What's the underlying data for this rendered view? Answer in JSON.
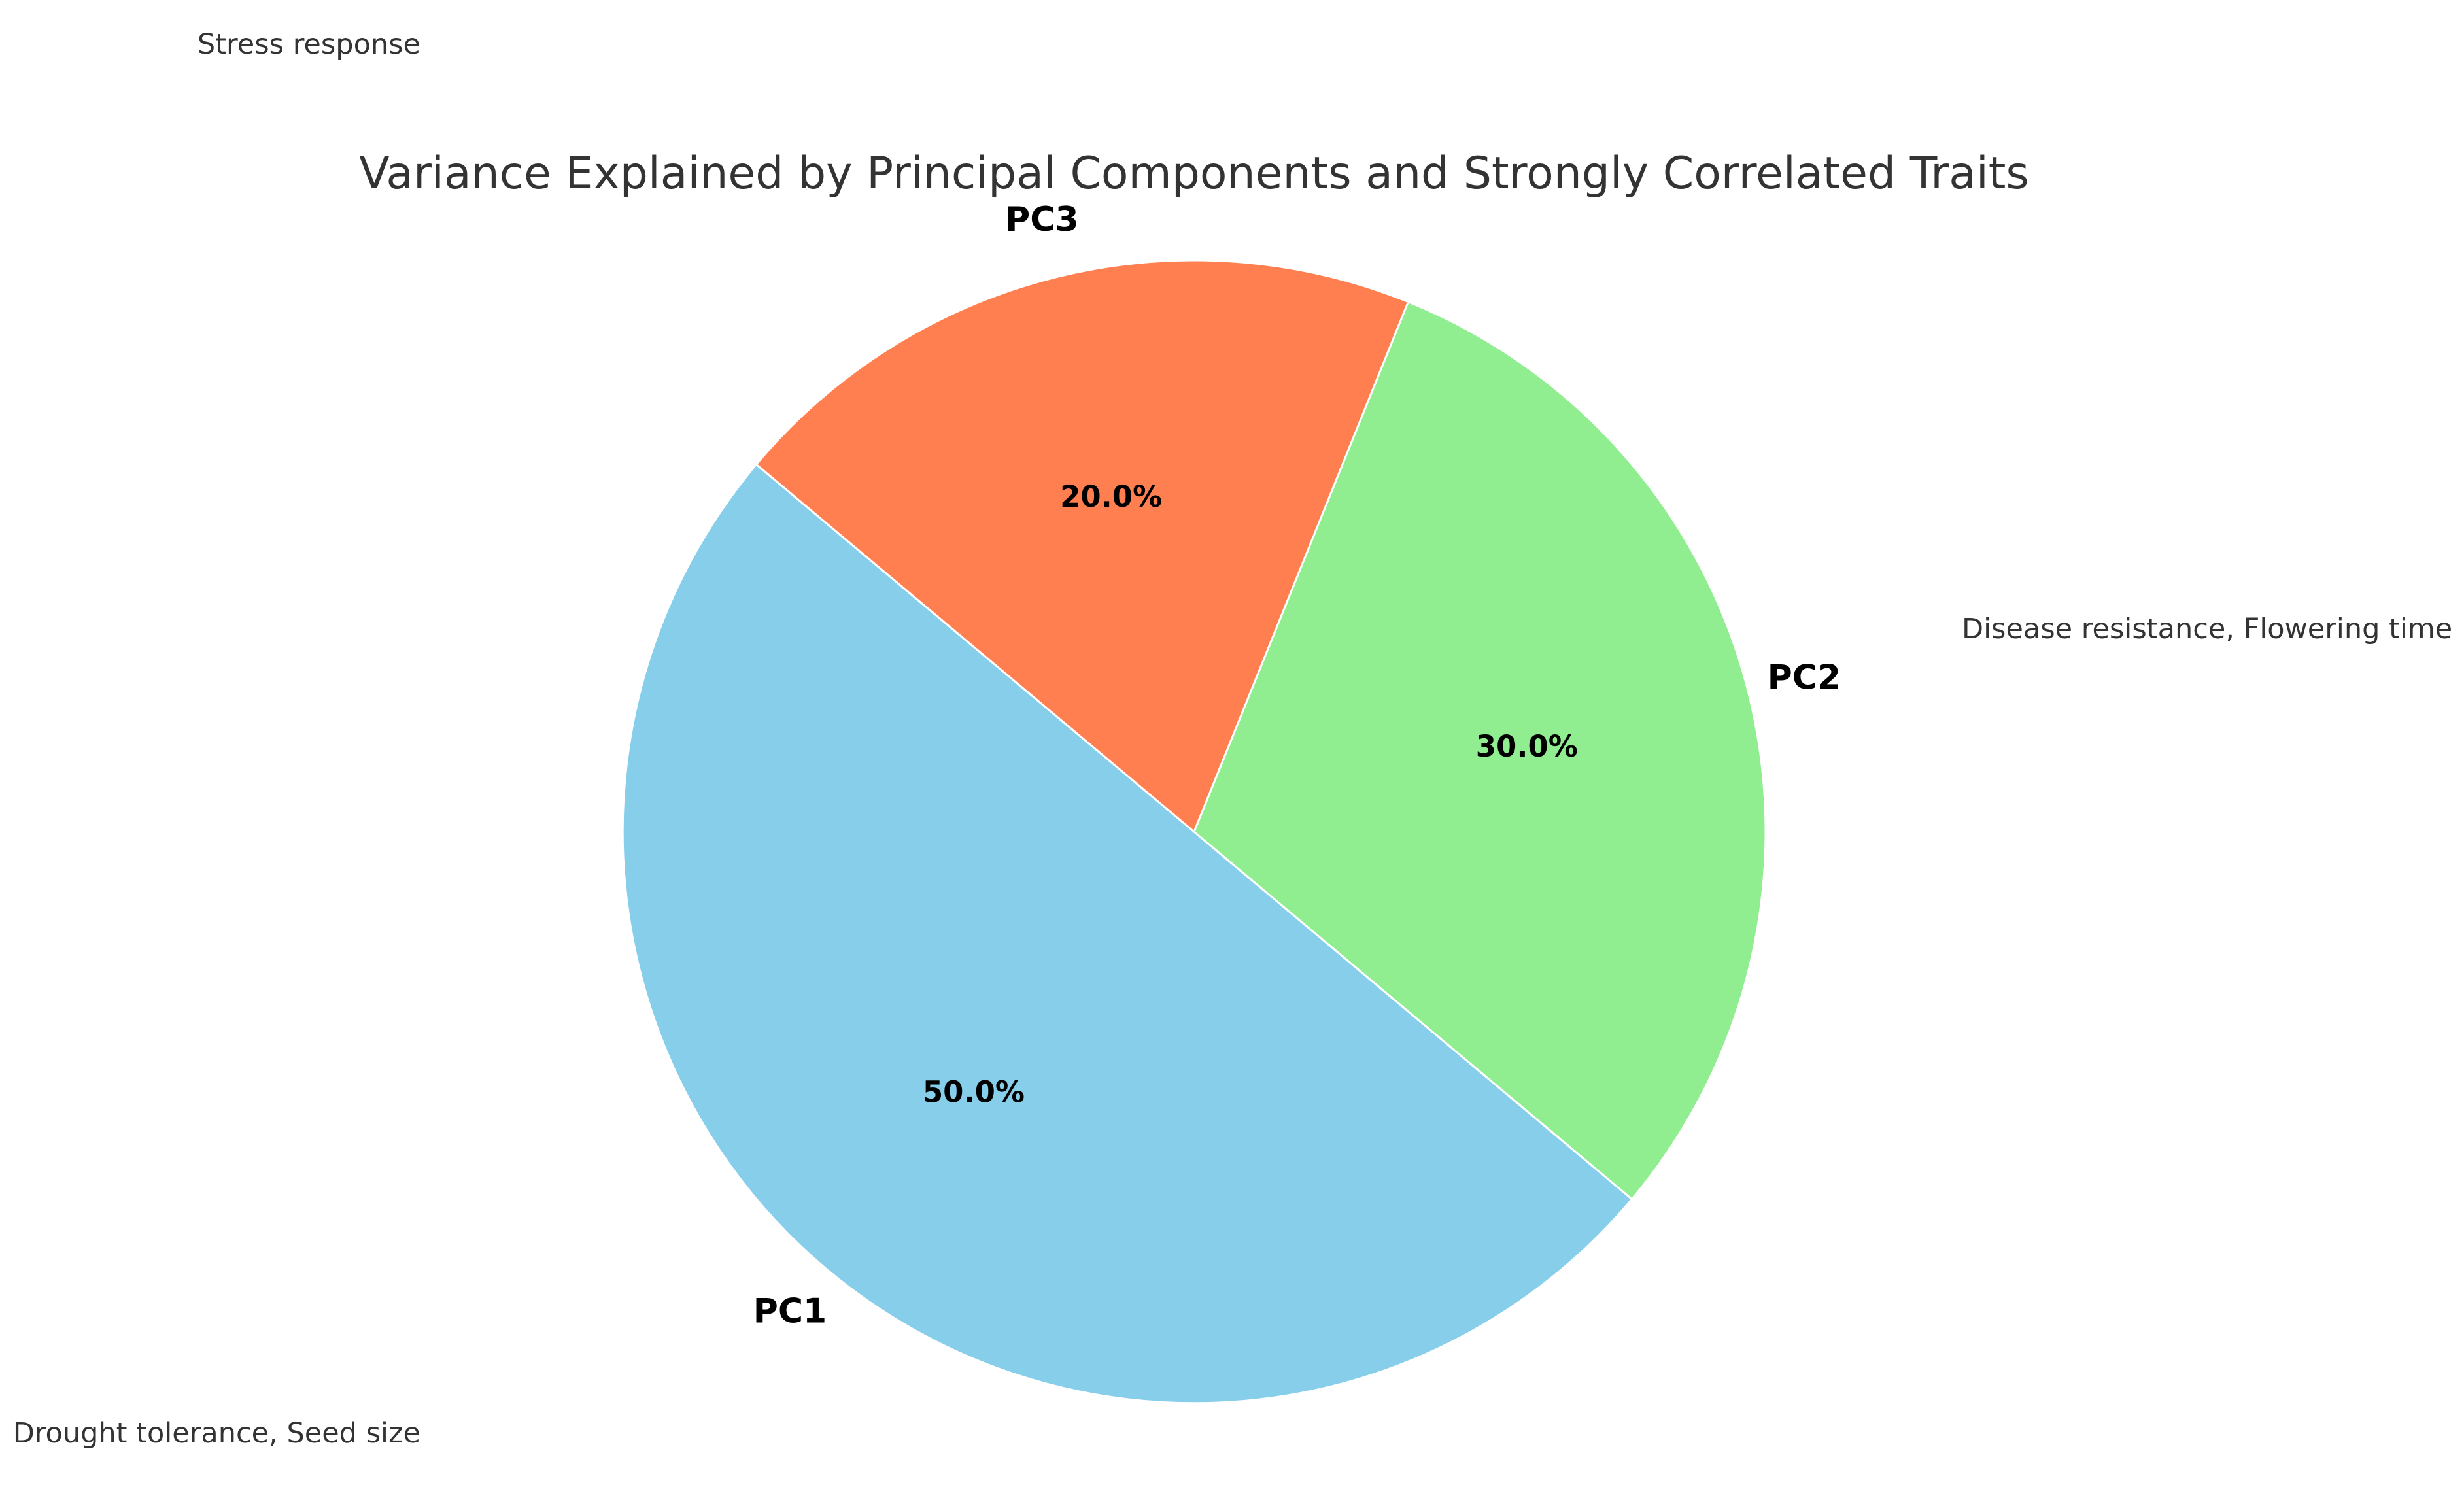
{
  "chart_data": {
    "type": "pie",
    "title": "Variance Explained by Principal Components and Strongly Correlated Traits",
    "categories": [
      "PC1",
      "PC2",
      "PC3"
    ],
    "values": [
      50.0,
      30.0,
      20.0
    ],
    "percent_labels": [
      "50.0%",
      "30.0%",
      "20.0%"
    ],
    "colors": [
      "#87CEEB",
      "#90EE90",
      "#FF7F50"
    ],
    "start_angle_deg": 140,
    "direction": "counterclockwise",
    "annotations": [
      "Drought tolerance, Seed size",
      "Disease resistance, Flowering time",
      "Stress response"
    ]
  }
}
